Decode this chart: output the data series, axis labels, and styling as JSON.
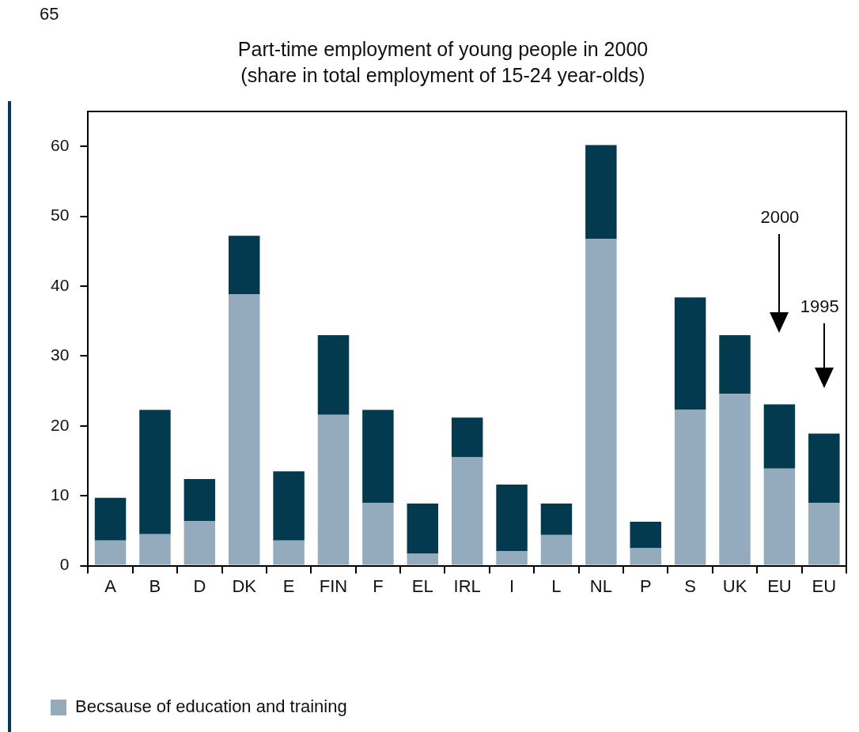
{
  "chart_data": {
    "type": "bar",
    "title": "Part-time employment of young people in 2000",
    "subtitle": "(share in total employment of 15-24 year-olds)",
    "categories": [
      "A",
      "B",
      "D",
      "DK",
      "E",
      "FIN",
      "F",
      "EL",
      "IRL",
      "I",
      "L",
      "NL",
      "P",
      "S",
      "UK",
      "EU",
      "EU"
    ],
    "stacked": true,
    "series": [
      {
        "name": "Becsause of education and training",
        "color": "#94aabd",
        "values": [
          3.6,
          4.5,
          6.4,
          38.8,
          3.6,
          21.6,
          9.0,
          1.7,
          15.5,
          2.1,
          4.4,
          46.8,
          2.5,
          22.3,
          24.6,
          13.9,
          9.0
        ]
      },
      {
        "color": "#033a50",
        "values": [
          6.1,
          17.8,
          6.0,
          8.4,
          9.9,
          11.4,
          13.3,
          7.2,
          5.7,
          9.5,
          4.5,
          13.4,
          3.8,
          16.1,
          8.4,
          9.2,
          9.9
        ]
      }
    ],
    "ylim": [
      0,
      65
    ],
    "yticks": [
      0,
      10,
      20,
      30,
      40,
      50,
      60
    ],
    "grid": false,
    "legend": "bottom left",
    "annotations": [
      "65",
      "2000",
      "1995"
    ]
  }
}
